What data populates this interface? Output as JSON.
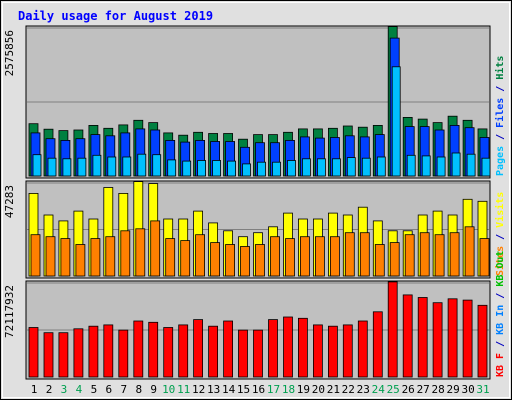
{
  "chart_data": {
    "type": "bar",
    "title": "Daily usage for August 2019",
    "categories": [
      "1",
      "2",
      "3",
      "4",
      "5",
      "6",
      "7",
      "8",
      "9",
      "10",
      "11",
      "12",
      "13",
      "14",
      "15",
      "16",
      "17",
      "18",
      "19",
      "20",
      "21",
      "22",
      "23",
      "24",
      "25",
      "26",
      "27",
      "28",
      "29",
      "30",
      "31"
    ],
    "weekend_days": [
      "3",
      "4",
      "10",
      "11",
      "17",
      "18",
      "24",
      "25",
      "31"
    ],
    "panels": [
      {
        "id": "hits",
        "ylim": [
          0,
          2575856
        ],
        "max_label": "2575856",
        "right_label": [
          {
            "text": "Pages",
            "color": "#00c0ff"
          },
          {
            "text": " / ",
            "color": "#0000c0"
          },
          {
            "text": "Files",
            "color": "#0040ff"
          },
          {
            "text": " / ",
            "color": "#0000c0"
          },
          {
            "text": "Hits",
            "color": "#008040"
          }
        ],
        "series": [
          {
            "name": "Hits",
            "color": "#008040",
            "values": [
              910000,
              815000,
              790000,
              800000,
              880000,
              830000,
              890000,
              970000,
              930000,
              750000,
              710000,
              760000,
              740000,
              740000,
              640000,
              720000,
              720000,
              760000,
              820000,
              820000,
              830000,
              870000,
              850000,
              880000,
              2600000,
              1020000,
              990000,
              930000,
              1040000,
              970000,
              820000
            ]
          },
          {
            "name": "Files",
            "color": "#0040ff",
            "values": [
              750000,
              650000,
              620000,
              650000,
              720000,
              700000,
              750000,
              820000,
              800000,
              620000,
              590000,
              620000,
              600000,
              600000,
              500000,
              580000,
              580000,
              620000,
              680000,
              660000,
              670000,
              700000,
              680000,
              720000,
              2400000,
              860000,
              860000,
              800000,
              880000,
              840000,
              670000
            ]
          },
          {
            "name": "Pages",
            "color": "#00c0ff",
            "values": [
              370000,
              310000,
              300000,
              310000,
              360000,
              330000,
              330000,
              380000,
              370000,
              280000,
              260000,
              270000,
              270000,
              260000,
              210000,
              240000,
              240000,
              270000,
              300000,
              300000,
              300000,
              320000,
              310000,
              330000,
              1900000,
              360000,
              350000,
              330000,
              400000,
              380000,
              310000
            ]
          }
        ]
      },
      {
        "id": "sites",
        "ylim": [
          0,
          47283
        ],
        "max_label": "47283",
        "right_label": [
          {
            "text": "Sites",
            "color": "#ff8000"
          },
          {
            "text": " / ",
            "color": "#0000c0"
          },
          {
            "text": "Visits",
            "color": "#ffff00"
          }
        ],
        "series": [
          {
            "name": "Visits",
            "color": "#ffff00",
            "values": [
              42000,
              31000,
              28000,
              33000,
              29000,
              45000,
              42000,
              48000,
              47000,
              29000,
              29000,
              33000,
              27000,
              23000,
              20000,
              22000,
              25000,
              32000,
              29000,
              29000,
              32000,
              31000,
              35000,
              28000,
              23000,
              23000,
              31000,
              33000,
              31000,
              39000,
              38000
            ]
          },
          {
            "name": "Sites",
            "color": "#ff8000",
            "values": [
              21000,
              20000,
              19000,
              16000,
              19000,
              20000,
              23000,
              24000,
              28000,
              19000,
              18000,
              21000,
              17000,
              16000,
              15000,
              16000,
              20000,
              19000,
              20000,
              20000,
              20000,
              22000,
              22000,
              16000,
              17000,
              21000,
              22000,
              21000,
              22000,
              25000,
              19000
            ]
          }
        ]
      },
      {
        "id": "kbytes",
        "ylim": [
          0,
          72117932
        ],
        "max_label": "72117932",
        "right_label": [
          {
            "text": "KB F",
            "color": "#ff0000"
          },
          {
            "text": " / ",
            "color": "#0000c0"
          },
          {
            "text": "KB In",
            "color": "#0080ff"
          },
          {
            "text": " / ",
            "color": "#0000c0"
          },
          {
            "text": "KB Out",
            "color": "#00c000"
          }
        ],
        "series": [
          {
            "name": "KB F",
            "color": "#ff0000",
            "values": [
              38000000,
              34000000,
              34000000,
              37000000,
              39000000,
              40000000,
              36000000,
              43000000,
              42000000,
              38000000,
              40000000,
              44000000,
              39000000,
              43000000,
              36000000,
              36000000,
              44000000,
              46000000,
              45000000,
              40000000,
              39000000,
              40000000,
              43000000,
              50000000,
              73000000,
              63000000,
              61000000,
              57000000,
              60000000,
              59000000,
              55000000
            ]
          }
        ]
      }
    ],
    "grid": true,
    "colors": {
      "background": "#c0c0c0",
      "page": "#e0e0e0",
      "title": "#0000ff",
      "weekday_label": "#000000",
      "weekend_label": "#00a050",
      "gridline": "#808080"
    }
  }
}
